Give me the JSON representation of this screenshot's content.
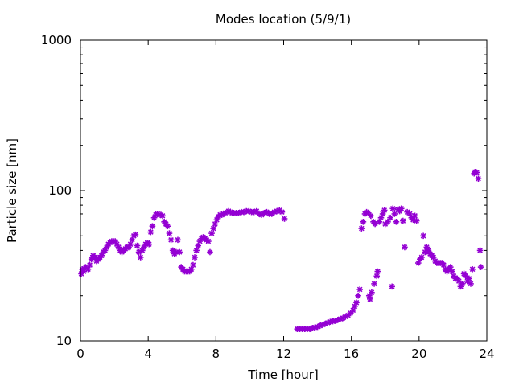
{
  "chart_data": {
    "type": "scatter",
    "title": "Modes location (5/9/1)",
    "xlabel": "Time [hour]",
    "ylabel": "Particle size [nm]",
    "xlim": [
      0,
      24
    ],
    "ylim": [
      10,
      1000
    ],
    "y_scale": "log",
    "x_ticks": [
      {
        "value": 0,
        "label": "0"
      },
      {
        "value": 4,
        "label": "4"
      },
      {
        "value": 8,
        "label": "8"
      },
      {
        "value": 12,
        "label": "12"
      },
      {
        "value": 16,
        "label": "16"
      },
      {
        "value": 20,
        "label": "20"
      },
      {
        "value": 24,
        "label": "24"
      }
    ],
    "y_ticks": [
      {
        "value": 10,
        "label": "10"
      },
      {
        "value": 100,
        "label": "100"
      },
      {
        "value": 1000,
        "label": "1000"
      }
    ],
    "grid": false,
    "legend": "none",
    "marker_color": "#9400d3",
    "series": [
      {
        "points": [
          [
            0.05,
            28
          ],
          [
            0.1,
            30
          ],
          [
            0.2,
            29
          ],
          [
            0.3,
            31
          ],
          [
            0.45,
            30
          ],
          [
            0.55,
            32
          ],
          [
            0.65,
            35
          ],
          [
            0.75,
            37
          ],
          [
            0.85,
            36
          ],
          [
            0.95,
            34
          ],
          [
            1.05,
            35
          ],
          [
            1.15,
            36
          ],
          [
            1.25,
            37
          ],
          [
            1.35,
            39
          ],
          [
            1.45,
            40
          ],
          [
            1.55,
            42
          ],
          [
            1.65,
            44
          ],
          [
            1.75,
            45
          ],
          [
            1.85,
            46
          ],
          [
            1.95,
            46
          ],
          [
            2.05,
            46
          ],
          [
            2.15,
            44
          ],
          [
            2.25,
            42
          ],
          [
            2.35,
            40
          ],
          [
            2.45,
            39
          ],
          [
            2.55,
            40
          ],
          [
            2.65,
            41
          ],
          [
            2.75,
            42
          ],
          [
            2.85,
            42
          ],
          [
            2.95,
            44
          ],
          [
            3.05,
            47
          ],
          [
            3.15,
            50
          ],
          [
            3.25,
            51
          ],
          [
            3.35,
            43
          ],
          [
            3.45,
            39
          ],
          [
            3.55,
            36
          ],
          [
            3.65,
            40
          ],
          [
            3.75,
            42
          ],
          [
            3.85,
            44
          ],
          [
            3.95,
            45
          ],
          [
            4.05,
            44
          ],
          [
            4.15,
            53
          ],
          [
            4.25,
            58
          ],
          [
            4.35,
            66
          ],
          [
            4.45,
            69
          ],
          [
            4.55,
            70
          ],
          [
            4.65,
            69
          ],
          [
            4.75,
            69
          ],
          [
            4.85,
            68
          ],
          [
            4.95,
            62
          ],
          [
            5.05,
            60
          ],
          [
            5.15,
            58
          ],
          [
            5.25,
            52
          ],
          [
            5.35,
            47
          ],
          [
            5.45,
            40
          ],
          [
            5.55,
            38
          ],
          [
            5.65,
            39
          ],
          [
            5.75,
            47
          ],
          [
            5.85,
            39
          ],
          [
            5.95,
            31
          ],
          [
            6.05,
            30
          ],
          [
            6.15,
            29
          ],
          [
            6.25,
            29
          ],
          [
            6.35,
            29
          ],
          [
            6.45,
            29
          ],
          [
            6.55,
            30
          ],
          [
            6.65,
            32
          ],
          [
            6.75,
            36
          ],
          [
            6.85,
            40
          ],
          [
            6.95,
            43
          ],
          [
            7.05,
            46
          ],
          [
            7.15,
            48
          ],
          [
            7.25,
            49
          ],
          [
            7.35,
            48
          ],
          [
            7.45,
            47
          ],
          [
            7.55,
            46
          ],
          [
            7.65,
            39
          ],
          [
            7.75,
            52
          ],
          [
            7.85,
            56
          ],
          [
            7.95,
            60
          ],
          [
            8.05,
            64
          ],
          [
            8.15,
            67
          ],
          [
            8.25,
            69
          ],
          [
            8.35,
            69
          ],
          [
            8.45,
            70
          ],
          [
            8.55,
            71
          ],
          [
            8.65,
            72
          ],
          [
            8.75,
            73
          ],
          [
            8.85,
            72
          ],
          [
            8.95,
            71
          ],
          [
            9.05,
            71
          ],
          [
            9.2,
            71
          ],
          [
            9.35,
            71
          ],
          [
            9.5,
            72
          ],
          [
            9.65,
            72
          ],
          [
            9.8,
            73
          ],
          [
            9.95,
            73
          ],
          [
            10.1,
            72
          ],
          [
            10.25,
            72
          ],
          [
            10.4,
            73
          ],
          [
            10.55,
            70
          ],
          [
            10.7,
            69
          ],
          [
            10.85,
            71
          ],
          [
            11.0,
            72
          ],
          [
            11.15,
            70
          ],
          [
            11.3,
            70
          ],
          [
            11.45,
            72
          ],
          [
            11.6,
            73
          ],
          [
            11.75,
            74
          ],
          [
            11.9,
            72
          ],
          [
            12.05,
            65
          ],
          [
            12.8,
            12
          ],
          [
            12.95,
            12
          ],
          [
            13.1,
            12
          ],
          [
            13.25,
            12
          ],
          [
            13.4,
            12
          ],
          [
            13.55,
            12
          ],
          [
            13.7,
            12.2
          ],
          [
            13.85,
            12.3
          ],
          [
            14.0,
            12.4
          ],
          [
            14.15,
            12.6
          ],
          [
            14.3,
            12.8
          ],
          [
            14.45,
            13
          ],
          [
            14.6,
            13.2
          ],
          [
            14.75,
            13.4
          ],
          [
            14.9,
            13.5
          ],
          [
            15.05,
            13.6
          ],
          [
            15.2,
            13.8
          ],
          [
            15.35,
            14
          ],
          [
            15.5,
            14.2
          ],
          [
            15.65,
            14.5
          ],
          [
            15.8,
            14.8
          ],
          [
            15.95,
            15.3
          ],
          [
            16.1,
            16
          ],
          [
            16.2,
            17
          ],
          [
            16.3,
            18
          ],
          [
            16.4,
            20
          ],
          [
            16.5,
            22
          ],
          [
            16.6,
            56
          ],
          [
            16.7,
            62
          ],
          [
            16.8,
            70
          ],
          [
            16.9,
            72
          ],
          [
            17.0,
            71
          ],
          [
            17.05,
            20
          ],
          [
            17.1,
            19
          ],
          [
            17.15,
            68
          ],
          [
            17.2,
            21
          ],
          [
            17.3,
            62
          ],
          [
            17.35,
            24
          ],
          [
            17.4,
            60
          ],
          [
            17.5,
            27
          ],
          [
            17.55,
            29
          ],
          [
            17.65,
            62
          ],
          [
            17.75,
            66
          ],
          [
            17.85,
            70
          ],
          [
            17.95,
            74
          ],
          [
            18.0,
            60
          ],
          [
            18.15,
            62
          ],
          [
            18.3,
            66
          ],
          [
            18.4,
            23
          ],
          [
            18.45,
            76
          ],
          [
            18.55,
            70
          ],
          [
            18.65,
            62
          ],
          [
            18.75,
            75
          ],
          [
            18.85,
            73
          ],
          [
            18.95,
            76
          ],
          [
            19.05,
            63
          ],
          [
            19.15,
            42
          ],
          [
            19.3,
            72
          ],
          [
            19.45,
            70
          ],
          [
            19.55,
            66
          ],
          [
            19.65,
            64
          ],
          [
            19.75,
            68
          ],
          [
            19.85,
            63
          ],
          [
            19.95,
            33
          ],
          [
            20.05,
            35
          ],
          [
            20.15,
            36
          ],
          [
            20.25,
            50
          ],
          [
            20.35,
            39
          ],
          [
            20.45,
            42
          ],
          [
            20.55,
            40
          ],
          [
            20.65,
            38
          ],
          [
            20.75,
            37
          ],
          [
            20.85,
            36
          ],
          [
            20.95,
            34
          ],
          [
            21.05,
            33
          ],
          [
            21.15,
            33
          ],
          [
            21.25,
            33
          ],
          [
            21.35,
            33
          ],
          [
            21.45,
            32
          ],
          [
            21.55,
            30
          ],
          [
            21.65,
            29
          ],
          [
            21.75,
            30
          ],
          [
            21.85,
            31
          ],
          [
            21.95,
            29
          ],
          [
            22.05,
            27
          ],
          [
            22.15,
            26
          ],
          [
            22.25,
            26
          ],
          [
            22.35,
            25
          ],
          [
            22.45,
            23
          ],
          [
            22.55,
            24
          ],
          [
            22.65,
            28
          ],
          [
            22.75,
            27
          ],
          [
            22.85,
            25
          ],
          [
            22.95,
            26
          ],
          [
            23.05,
            24
          ],
          [
            23.15,
            30
          ],
          [
            23.25,
            130
          ],
          [
            23.3,
            133
          ],
          [
            23.4,
            132
          ],
          [
            23.5,
            120
          ],
          [
            23.6,
            40
          ],
          [
            23.65,
            31
          ]
        ]
      }
    ]
  }
}
